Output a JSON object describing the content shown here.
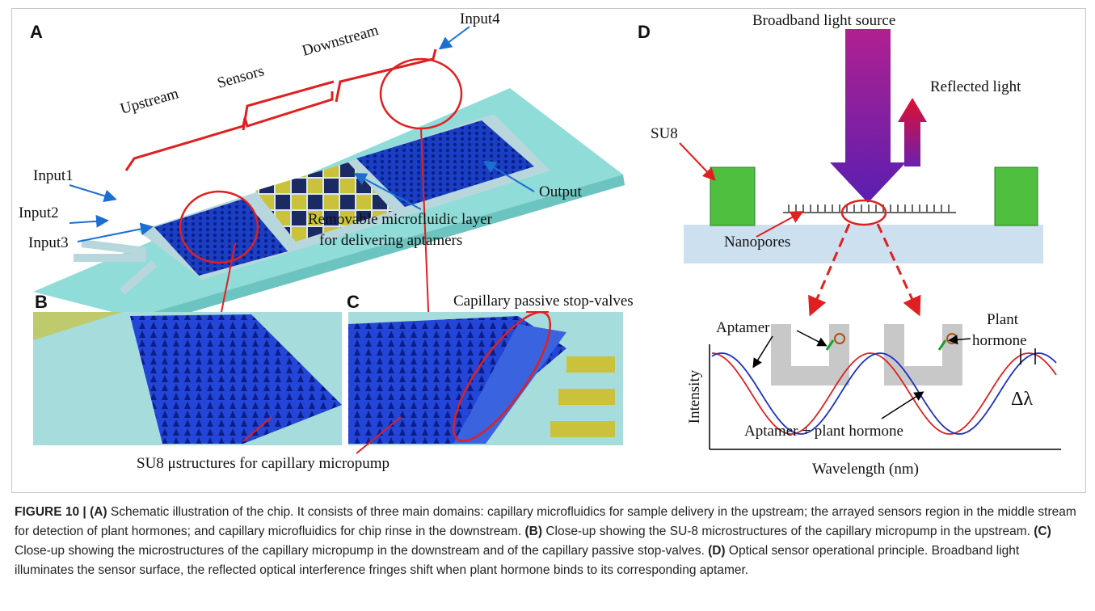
{
  "panels": {
    "a": {
      "label": "A",
      "upstream": "Upstream",
      "sensors": "Sensors",
      "downstream": "Downstream",
      "input1": "Input1",
      "input2": "Input2",
      "input3": "Input3",
      "input4": "Input4",
      "output": "Output",
      "layer_line1": "Removable microfluidic layer",
      "layer_line2": "for delivering aptamers"
    },
    "b": {
      "label": "B"
    },
    "c": {
      "label": "C",
      "valves": "Capillary passive stop-valves"
    },
    "bc_caption": "SU8 μstructures for capillary micropump",
    "d": {
      "label": "D",
      "source": "Broadband light source",
      "reflected": "Reflected light",
      "su8": "SU8",
      "nanopores": "Nanopores",
      "aptamer": "Aptamer",
      "plant_line1": "Plant",
      "plant_line2": "hormone",
      "y_axis": "Intensity",
      "x_axis": "Wavelength (nm)",
      "combined": "Aptamer + plant hormone",
      "shift": "Δλ"
    }
  },
  "caption": {
    "figure": "FIGURE 10 |",
    "parts": [
      {
        "tag": "(A)",
        "text": "Schematic illustration of the chip. It consists of three main domains: capillary microfluidics for sample delivery in the upstream; the arrayed sensors region in the middle stream for detection of plant hormones; and capillary microfluidics for chip rinse in the downstream."
      },
      {
        "tag": "(B)",
        "text": "Close-up showing the SU-8 microstructures of the capillary micropump in the upstream."
      },
      {
        "tag": "(C)",
        "text": "Close-up showing the microstructures of the capillary micropump in the downstream and of the capillary passive stop-valves."
      },
      {
        "tag": "(D)",
        "text": "Optical sensor operational principle. Broadband light illuminates the sensor surface, the reflected optical interference fringes shift when plant hormone binds to its corresponding aptamer."
      }
    ]
  }
}
